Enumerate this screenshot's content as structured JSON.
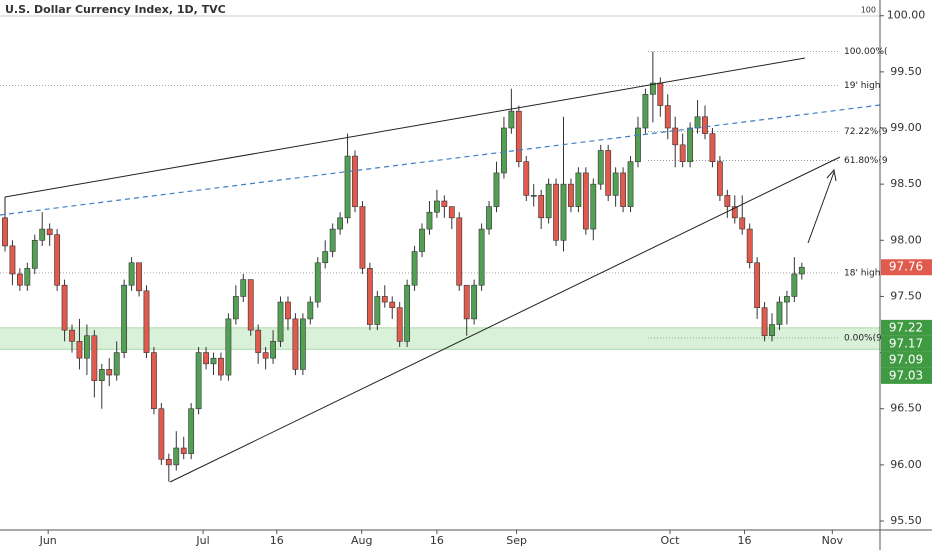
{
  "chart_data": {
    "type": "candlestick",
    "title": "U.S. Dollar Currency Index, 1D, TVC",
    "scale_label": "100",
    "up_color": "#53a055",
    "down_color": "#e05a4e",
    "ylim": [
      95.42,
      100.14
    ],
    "yticks": [
      {
        "value": 95.5,
        "label": "95.50"
      },
      {
        "value": 96,
        "label": "96.00"
      },
      {
        "value": 96.5,
        "label": "96.50"
      },
      {
        "value": 97,
        "label": "97.00"
      },
      {
        "value": 97.5,
        "label": "97.50"
      },
      {
        "value": 98,
        "label": "98.00"
      },
      {
        "value": 98.5,
        "label": "98.50"
      },
      {
        "value": 99,
        "label": "99.00"
      },
      {
        "value": 99.5,
        "label": "99.50"
      },
      {
        "value": 100,
        "label": "100.00"
      }
    ],
    "xlim": [
      -0.67,
      117.5
    ],
    "xticks": [
      {
        "value": 5.8,
        "label": "Jun"
      },
      {
        "value": 26.6,
        "label": "Jul"
      },
      {
        "value": 36.5,
        "label": "16"
      },
      {
        "value": 47.9,
        "label": "Aug"
      },
      {
        "value": 58,
        "label": "16"
      },
      {
        "value": 68.7,
        "label": "Sep"
      },
      {
        "value": 89.3,
        "label": "Oct"
      },
      {
        "value": 99.3,
        "label": "16"
      },
      {
        "value": 111.1,
        "label": "Nov"
      }
    ],
    "levels": [
      {
        "label": "100.00%(",
        "value": 99.68
      },
      {
        "label": "19' high",
        "value": 99.38
      },
      {
        "label": "72.22%(9",
        "value": 98.97
      },
      {
        "label": "61.80%(9",
        "value": 98.71
      },
      {
        "label": "18' high",
        "value": 97.71
      },
      {
        "label": "0.00%(97",
        "value": 97.13
      }
    ],
    "last_price": 97.76,
    "zone_labels": [
      97.22,
      97.17,
      97.09,
      97.03
    ],
    "ohlc": [
      [
        98.2,
        98.35,
        97.9,
        97.95
      ],
      [
        97.95,
        98.0,
        97.6,
        97.7
      ],
      [
        97.7,
        97.75,
        97.55,
        97.6
      ],
      [
        97.6,
        97.8,
        97.55,
        97.75
      ],
      [
        97.75,
        98.05,
        97.7,
        98.0
      ],
      [
        98.0,
        98.25,
        97.95,
        98.1
      ],
      [
        98.1,
        98.15,
        97.95,
        98.05
      ],
      [
        98.05,
        98.1,
        97.55,
        97.6
      ],
      [
        97.6,
        97.65,
        97.1,
        97.2
      ],
      [
        97.2,
        97.25,
        97.0,
        97.1
      ],
      [
        97.1,
        97.3,
        96.85,
        96.95
      ],
      [
        96.95,
        97.25,
        96.8,
        97.15
      ],
      [
        97.15,
        97.2,
        96.6,
        96.75
      ],
      [
        96.75,
        96.9,
        96.5,
        96.85
      ],
      [
        96.85,
        96.95,
        96.7,
        96.8
      ],
      [
        96.8,
        97.1,
        96.75,
        97.0
      ],
      [
        97.0,
        97.65,
        96.95,
        97.6
      ],
      [
        97.6,
        97.85,
        97.55,
        97.8
      ],
      [
        97.8,
        97.8,
        97.5,
        97.55
      ],
      [
        97.55,
        97.6,
        96.95,
        97.0
      ],
      [
        97.0,
        97.05,
        96.45,
        96.5
      ],
      [
        96.5,
        96.55,
        96.0,
        96.05
      ],
      [
        96.05,
        96.1,
        95.85,
        96.0
      ],
      [
        96.0,
        96.3,
        95.95,
        96.15
      ],
      [
        96.15,
        96.25,
        96.05,
        96.1
      ],
      [
        96.1,
        96.55,
        96.05,
        96.5
      ],
      [
        96.5,
        97.05,
        96.45,
        97.0
      ],
      [
        97.0,
        97.05,
        96.85,
        96.9
      ],
      [
        96.9,
        97.0,
        96.8,
        96.95
      ],
      [
        96.95,
        97.0,
        96.75,
        96.8
      ],
      [
        96.8,
        97.35,
        96.75,
        97.3
      ],
      [
        97.3,
        97.6,
        97.25,
        97.5
      ],
      [
        97.5,
        97.7,
        97.45,
        97.65
      ],
      [
        97.65,
        97.65,
        97.15,
        97.2
      ],
      [
        97.2,
        97.25,
        96.9,
        97.0
      ],
      [
        97.0,
        97.05,
        96.85,
        96.95
      ],
      [
        96.95,
        97.2,
        96.9,
        97.1
      ],
      [
        97.1,
        97.5,
        97.05,
        97.45
      ],
      [
        97.45,
        97.5,
        97.2,
        97.3
      ],
      [
        97.3,
        97.35,
        96.8,
        96.85
      ],
      [
        96.85,
        97.35,
        96.8,
        97.3
      ],
      [
        97.3,
        97.5,
        97.25,
        97.45
      ],
      [
        97.45,
        97.85,
        97.4,
        97.8
      ],
      [
        97.8,
        98.0,
        97.75,
        97.9
      ],
      [
        97.9,
        98.15,
        97.85,
        98.1
      ],
      [
        98.1,
        98.25,
        98.05,
        98.2
      ],
      [
        98.2,
        98.95,
        98.15,
        98.75
      ],
      [
        98.75,
        98.8,
        98.25,
        98.3
      ],
      [
        98.3,
        98.35,
        97.7,
        97.75
      ],
      [
        97.75,
        97.8,
        97.2,
        97.25
      ],
      [
        97.25,
        97.55,
        97.2,
        97.5
      ],
      [
        97.5,
        97.6,
        97.4,
        97.45
      ],
      [
        97.45,
        97.5,
        97.3,
        97.4
      ],
      [
        97.4,
        97.45,
        97.05,
        97.1
      ],
      [
        97.1,
        97.65,
        97.05,
        97.6
      ],
      [
        97.6,
        97.95,
        97.55,
        97.9
      ],
      [
        97.9,
        98.15,
        97.85,
        98.1
      ],
      [
        98.1,
        98.35,
        98.05,
        98.25
      ],
      [
        98.25,
        98.45,
        98.2,
        98.35
      ],
      [
        98.35,
        98.4,
        98.2,
        98.3
      ],
      [
        98.3,
        98.3,
        98.1,
        98.2
      ],
      [
        98.2,
        98.25,
        97.55,
        97.6
      ],
      [
        97.6,
        97.6,
        97.15,
        97.3
      ],
      [
        97.3,
        97.65,
        97.25,
        97.6
      ],
      [
        97.6,
        98.15,
        97.55,
        98.1
      ],
      [
        98.1,
        98.35,
        98.05,
        98.3
      ],
      [
        98.3,
        98.7,
        98.25,
        98.6
      ],
      [
        98.6,
        99.1,
        98.55,
        99.0
      ],
      [
        99.0,
        99.35,
        98.95,
        99.15
      ],
      [
        99.15,
        99.2,
        98.65,
        98.7
      ],
      [
        98.7,
        98.75,
        98.35,
        98.4
      ],
      [
        98.4,
        98.5,
        98.3,
        98.4
      ],
      [
        98.4,
        98.45,
        98.1,
        98.2
      ],
      [
        98.2,
        98.55,
        98.15,
        98.5
      ],
      [
        98.5,
        98.55,
        97.95,
        98.0
      ],
      [
        98.0,
        99.1,
        97.9,
        98.5
      ],
      [
        98.5,
        98.55,
        98.25,
        98.3
      ],
      [
        98.3,
        98.65,
        98.25,
        98.6
      ],
      [
        98.6,
        98.65,
        98.05,
        98.1
      ],
      [
        98.1,
        98.55,
        98.0,
        98.5
      ],
      [
        98.5,
        98.85,
        98.45,
        98.8
      ],
      [
        98.8,
        98.85,
        98.35,
        98.4
      ],
      [
        98.4,
        98.65,
        98.3,
        98.6
      ],
      [
        98.6,
        98.65,
        98.25,
        98.3
      ],
      [
        98.3,
        98.75,
        98.25,
        98.7
      ],
      [
        98.7,
        99.1,
        98.65,
        99.0
      ],
      [
        99.0,
        99.35,
        98.95,
        99.3
      ],
      [
        99.3,
        99.68,
        99.05,
        99.4
      ],
      [
        99.4,
        99.45,
        99.1,
        99.2
      ],
      [
        99.2,
        99.3,
        98.9,
        99.0
      ],
      [
        99.0,
        99.1,
        98.65,
        98.85
      ],
      [
        98.85,
        98.95,
        98.65,
        98.7
      ],
      [
        98.7,
        99.05,
        98.65,
        99.0
      ],
      [
        99.0,
        99.25,
        98.95,
        99.1
      ],
      [
        99.1,
        99.2,
        98.9,
        98.95
      ],
      [
        98.95,
        99.0,
        98.65,
        98.7
      ],
      [
        98.7,
        98.75,
        98.35,
        98.4
      ],
      [
        98.4,
        98.45,
        98.2,
        98.3
      ],
      [
        98.3,
        98.4,
        98.15,
        98.2
      ],
      [
        98.2,
        98.4,
        98.05,
        98.1
      ],
      [
        98.1,
        98.15,
        97.75,
        97.8
      ],
      [
        97.8,
        97.85,
        97.3,
        97.4
      ],
      [
        97.4,
        97.45,
        97.1,
        97.15
      ],
      [
        97.15,
        97.35,
        97.1,
        97.25
      ],
      [
        97.25,
        97.5,
        97.2,
        97.45
      ],
      [
        97.45,
        97.55,
        97.25,
        97.5
      ],
      [
        97.5,
        97.85,
        97.45,
        97.7
      ],
      [
        97.7,
        97.8,
        97.65,
        97.76
      ]
    ]
  }
}
